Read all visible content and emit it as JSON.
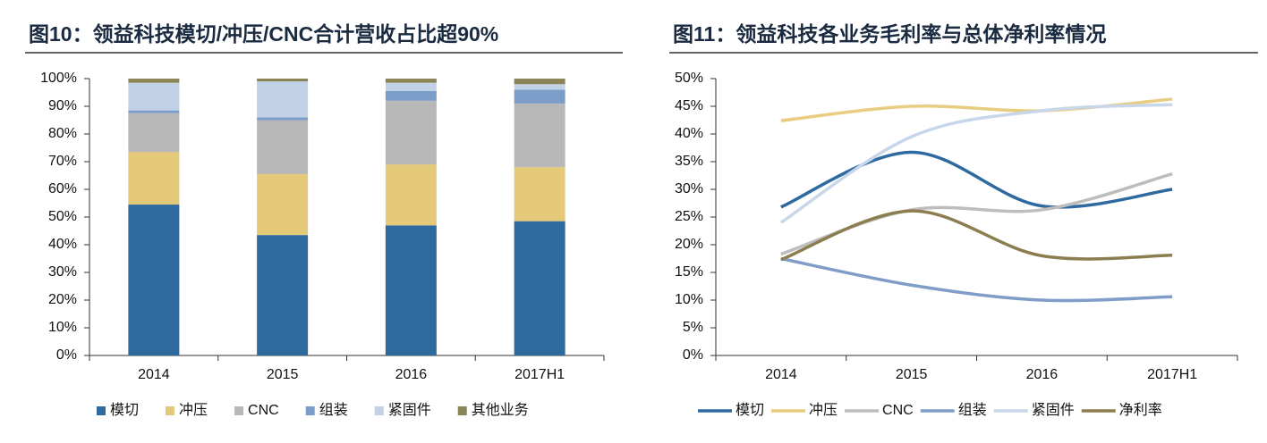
{
  "chart_data": [
    {
      "type": "bar",
      "stacked": true,
      "title": "图10：领益科技模切/冲压/CNC合计营收占比超90%",
      "categories": [
        "2014",
        "2015",
        "2016",
        "2017H1"
      ],
      "series": [
        {
          "name": "模切",
          "color": "#2f6a9f",
          "values": [
            54.5,
            43.5,
            47,
            48.5
          ]
        },
        {
          "name": "冲压",
          "color": "#e3c978",
          "values": [
            19,
            22,
            22,
            19.5
          ]
        },
        {
          "name": "CNC",
          "color": "#b8b8b8",
          "values": [
            14,
            19.5,
            23,
            23
          ]
        },
        {
          "name": "组装",
          "color": "#7c9cc9",
          "values": [
            1,
            1,
            3.5,
            5
          ]
        },
        {
          "name": "紧固件",
          "color": "#c1d1e6",
          "values": [
            10,
            13,
            3,
            2
          ]
        },
        {
          "name": "其他业务",
          "color": "#8c8557",
          "values": [
            1.5,
            1,
            1.5,
            2
          ]
        }
      ],
      "ylim": [
        0,
        100
      ],
      "yticks": [
        {
          "value": 0,
          "label": "0%"
        },
        {
          "value": 10,
          "label": "10%"
        },
        {
          "value": 20,
          "label": "20%"
        },
        {
          "value": 30,
          "label": "30%"
        },
        {
          "value": 40,
          "label": "40%"
        },
        {
          "value": 50,
          "label": "50%"
        },
        {
          "value": 60,
          "label": "60%"
        },
        {
          "value": 70,
          "label": "70%"
        },
        {
          "value": 80,
          "label": "80%"
        },
        {
          "value": 90,
          "label": "90%"
        },
        {
          "value": 100,
          "label": "100%"
        }
      ],
      "legend": "bottom"
    },
    {
      "type": "line",
      "smooth": true,
      "title": "图11：领益科技各业务毛利率与总体净利率情况",
      "categories": [
        "2014",
        "2015",
        "2016",
        "2017H1"
      ],
      "series": [
        {
          "name": "模切",
          "color": "#2e6aa0",
          "values": [
            26.8,
            36.7,
            27,
            30
          ]
        },
        {
          "name": "冲压",
          "color": "#e8cc80",
          "values": [
            42.4,
            45,
            44.2,
            46.3
          ]
        },
        {
          "name": "CNC",
          "color": "#bdbdbd",
          "values": [
            18.3,
            26.3,
            26.3,
            32.8
          ]
        },
        {
          "name": "组装",
          "color": "#7f9dc8",
          "values": [
            17.5,
            12.7,
            10,
            10.6
          ]
        },
        {
          "name": "紧固件",
          "color": "#c8d6ea",
          "values": [
            24,
            39.5,
            44.2,
            45.3
          ]
        },
        {
          "name": "净利率",
          "color": "#8b7d4f",
          "values": [
            17.3,
            26.1,
            18,
            18.1
          ]
        }
      ],
      "ylim": [
        0,
        50
      ],
      "yticks": [
        {
          "value": 0,
          "label": "0%"
        },
        {
          "value": 5,
          "label": "5%"
        },
        {
          "value": 10,
          "label": "10%"
        },
        {
          "value": 15,
          "label": "15%"
        },
        {
          "value": 20,
          "label": "20%"
        },
        {
          "value": 25,
          "label": "25%"
        },
        {
          "value": 30,
          "label": "30%"
        },
        {
          "value": 35,
          "label": "35%"
        },
        {
          "value": 40,
          "label": "40%"
        },
        {
          "value": 45,
          "label": "45%"
        },
        {
          "value": 50,
          "label": "50%"
        }
      ],
      "legend": "bottom"
    }
  ]
}
